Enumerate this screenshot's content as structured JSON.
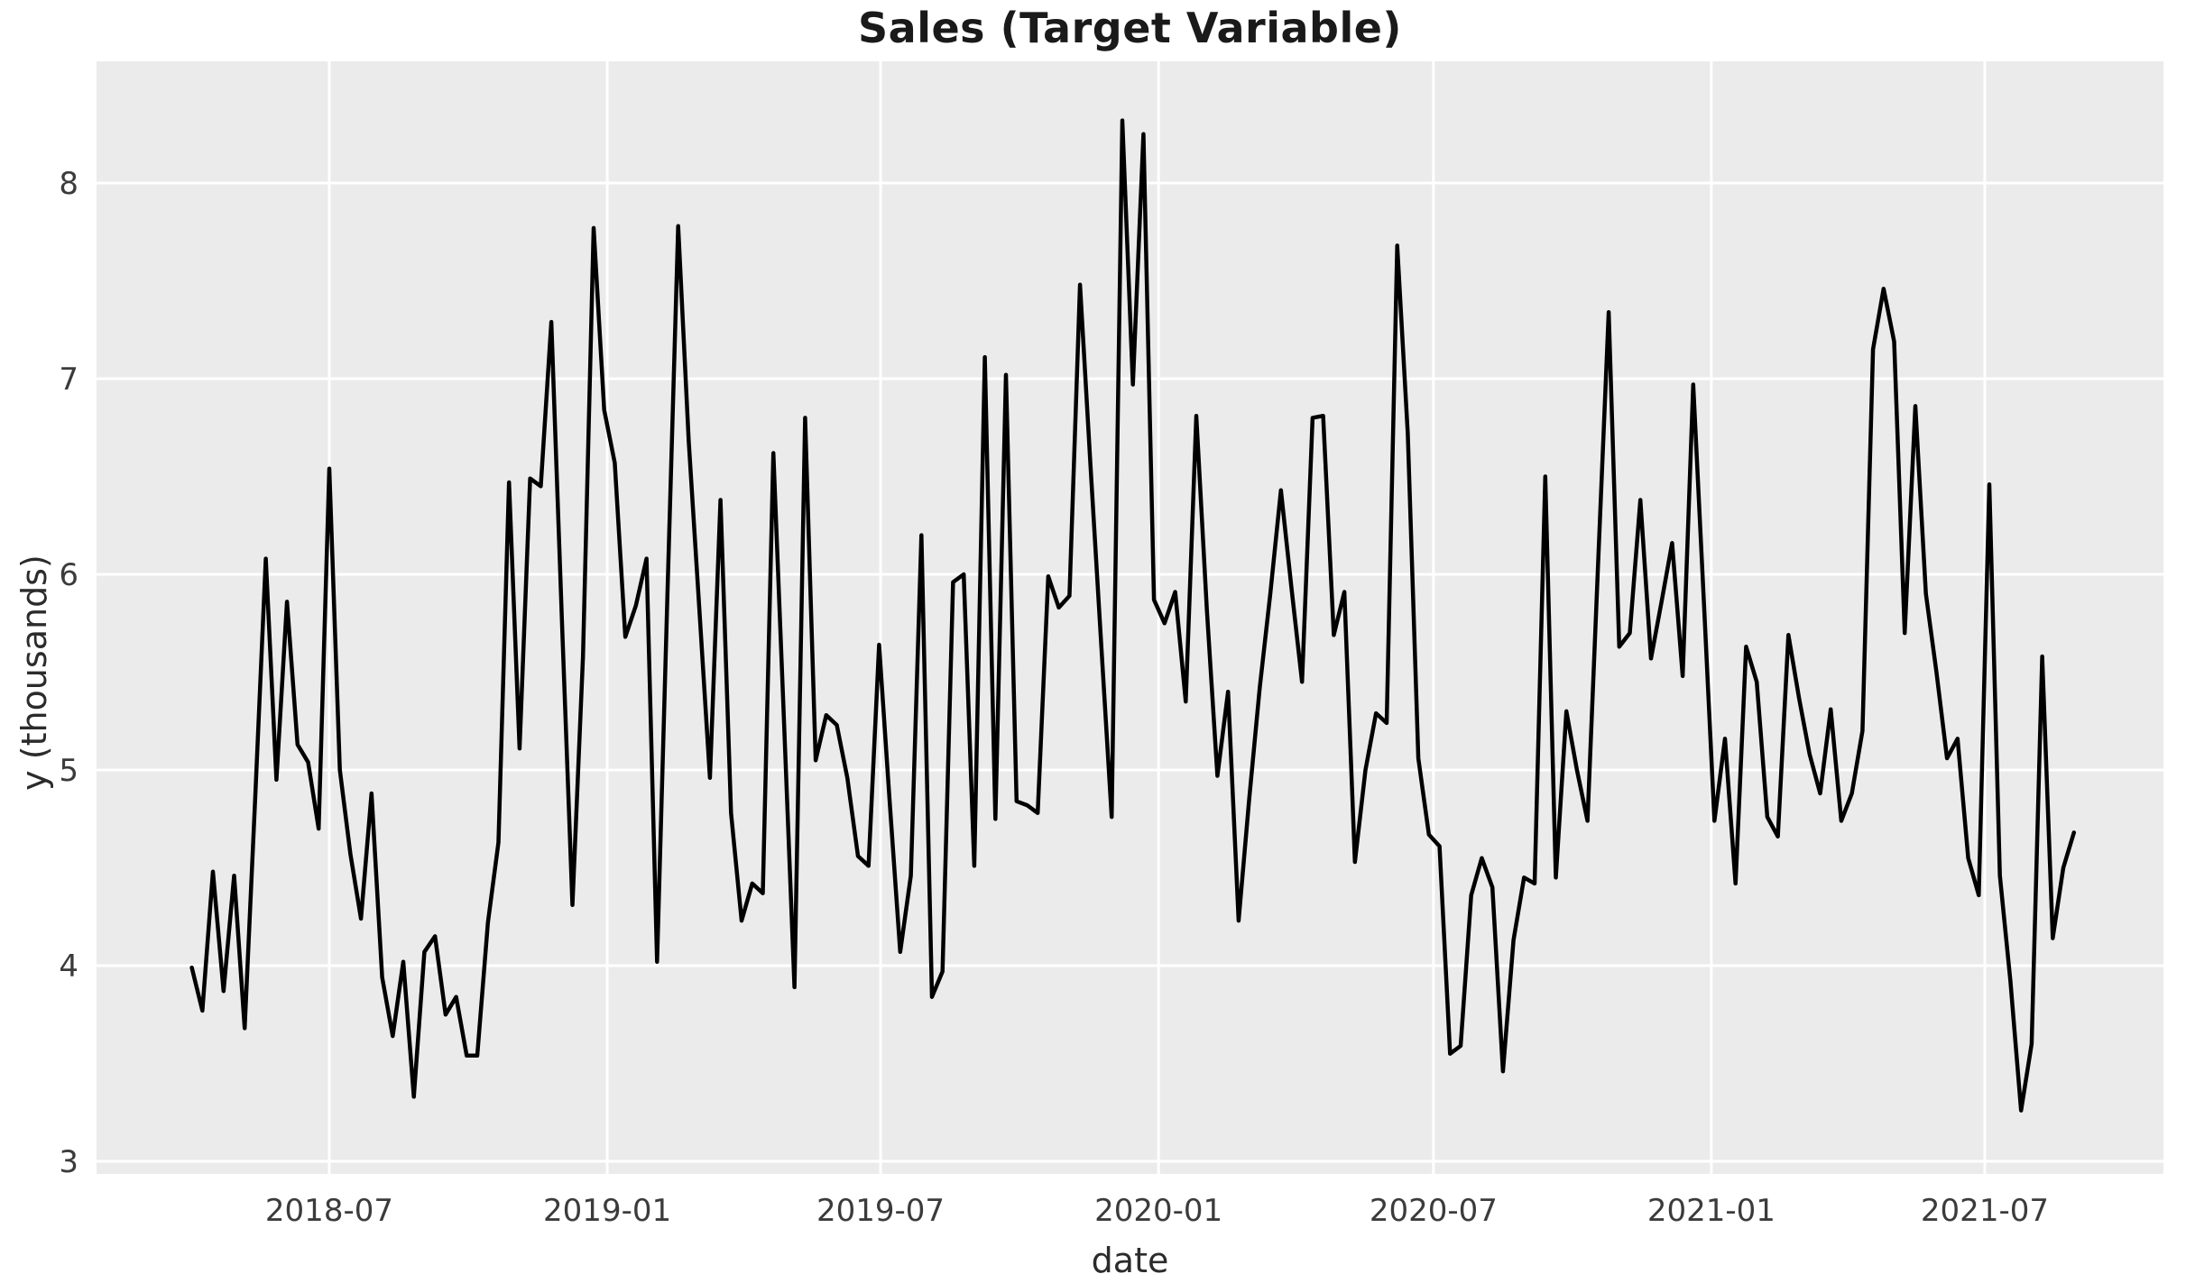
{
  "chart_data": {
    "type": "line",
    "title": "Sales (Target Variable)",
    "xlabel": "date",
    "ylabel": "y (thousands)",
    "legend": null,
    "grid": true,
    "plot_bg_color": "#ebebeb",
    "grid_color": "#ffffff",
    "line_color": "#000000",
    "line_width": 4.5,
    "ylim": [
      2.93,
      8.62
    ],
    "y_ticks": [
      3,
      4,
      5,
      6,
      7,
      8
    ],
    "x_ticks": [
      {
        "label": "2018-07",
        "week": 13.0
      },
      {
        "label": "2019-01",
        "week": 39.29
      },
      {
        "label": "2019-07",
        "week": 65.14
      },
      {
        "label": "2020-01",
        "week": 91.43
      },
      {
        "label": "2020-07",
        "week": 117.43
      },
      {
        "label": "2021-01",
        "week": 143.71
      },
      {
        "label": "2021-07",
        "week": 169.57
      }
    ],
    "x_start_date": "2018-04-01",
    "x_end_date": "2021-08-29",
    "x_freq_days": 7,
    "values": [
      3.99,
      3.77,
      4.48,
      3.87,
      4.46,
      3.68,
      4.86,
      6.08,
      4.95,
      5.86,
      5.13,
      5.04,
      4.7,
      6.54,
      5.0,
      4.57,
      4.24,
      4.88,
      3.94,
      3.64,
      4.02,
      3.33,
      4.07,
      4.15,
      3.75,
      3.84,
      3.54,
      3.54,
      4.22,
      4.63,
      6.47,
      5.11,
      6.49,
      6.45,
      7.29,
      5.77,
      4.31,
      5.58,
      7.77,
      6.84,
      6.57,
      5.68,
      5.84,
      6.08,
      4.02,
      5.93,
      7.78,
      6.68,
      5.82,
      4.96,
      6.38,
      4.78,
      4.23,
      4.42,
      4.37,
      6.62,
      5.26,
      3.89,
      6.8,
      5.05,
      5.28,
      5.23,
      4.96,
      4.56,
      4.51,
      5.64,
      4.84,
      4.07,
      4.46,
      6.2,
      3.84,
      3.97,
      5.96,
      6.0,
      4.51,
      7.11,
      4.75,
      7.02,
      4.84,
      4.82,
      4.78,
      5.99,
      5.83,
      5.89,
      7.48,
      6.55,
      5.65,
      4.76,
      8.32,
      6.97,
      8.25,
      5.87,
      5.75,
      5.91,
      5.35,
      6.81,
      5.82,
      4.97,
      5.4,
      4.23,
      4.85,
      5.42,
      5.9,
      6.43,
      5.93,
      5.45,
      6.8,
      6.81,
      5.69,
      5.91,
      4.53,
      5.0,
      5.29,
      5.24,
      7.68,
      6.72,
      5.06,
      4.67,
      4.61,
      3.55,
      3.59,
      4.36,
      4.55,
      4.4,
      3.46,
      4.13,
      4.45,
      4.42,
      6.5,
      4.45,
      5.3,
      5.0,
      4.74,
      6.06,
      7.34,
      5.63,
      5.7,
      6.38,
      5.57,
      5.86,
      6.16,
      5.48,
      6.97,
      5.86,
      4.74,
      5.16,
      4.42,
      5.63,
      5.45,
      4.76,
      4.66,
      5.69,
      5.37,
      5.08,
      4.88,
      5.31,
      4.74,
      4.88,
      5.2,
      7.15,
      7.46,
      7.19,
      5.7,
      6.86,
      5.9,
      5.5,
      5.06,
      5.16,
      4.55,
      4.36,
      6.46,
      4.46,
      3.92,
      3.26,
      3.6,
      5.58,
      4.14,
      4.5,
      4.68
    ]
  }
}
